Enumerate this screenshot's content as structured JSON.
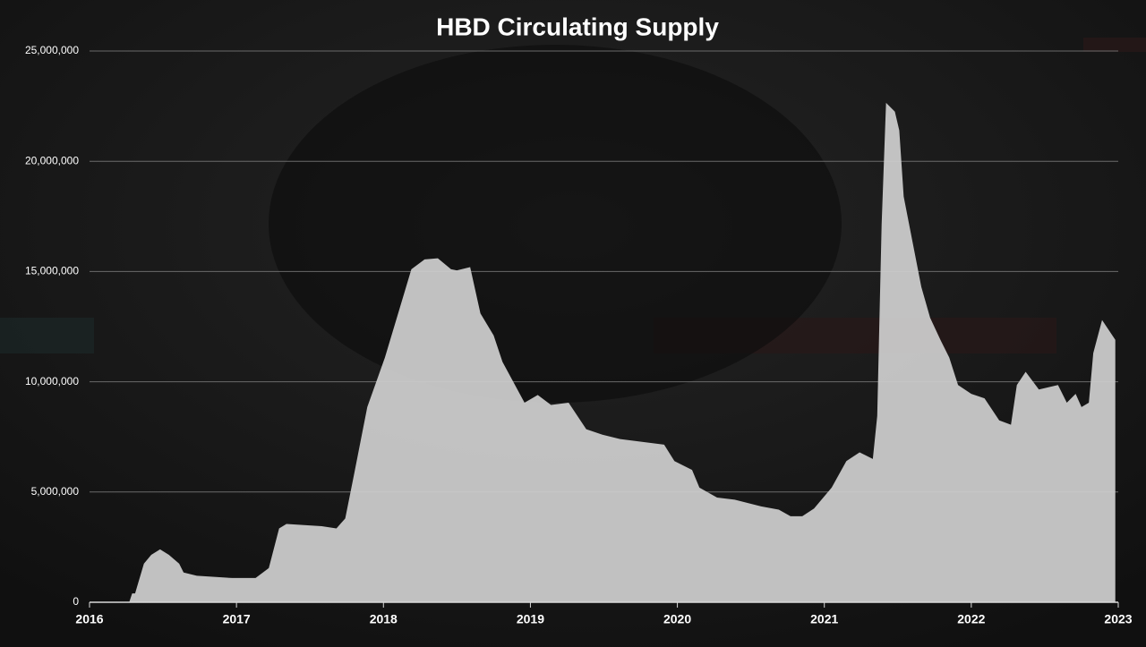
{
  "chart_data": {
    "type": "area",
    "title": "HBD Circulating Supply",
    "color": "#cfcfcf",
    "grid": true,
    "xlim": [
      2016,
      2023
    ],
    "xticks": [
      2016,
      2017,
      2018,
      2019,
      2020,
      2021,
      2022,
      2023
    ],
    "ylim": [
      0,
      25000000
    ],
    "yticks": [
      0,
      {
        "value": 5000000,
        "label": "5,000,000"
      },
      {
        "value": 10000000,
        "label": "10,000,000"
      },
      {
        "value": 15000000,
        "label": "15,000,000"
      },
      {
        "value": 20000000,
        "label": "20,000,000"
      },
      {
        "value": 25000000,
        "label": "25,000,000"
      }
    ],
    "x": [
      2016.0,
      2016.27,
      2016.29,
      2016.31,
      2016.37,
      2016.42,
      2016.48,
      2016.54,
      2016.61,
      2016.64,
      2016.73,
      2016.97,
      2017.13,
      2017.22,
      2017.29,
      2017.34,
      2017.58,
      2017.68,
      2017.74,
      2017.8,
      2017.89,
      2018.01,
      2018.1,
      2018.19,
      2018.28,
      2018.37,
      2018.46,
      2018.5,
      2018.59,
      2018.66,
      2018.75,
      2018.81,
      2018.96,
      2019.05,
      2019.14,
      2019.26,
      2019.38,
      2019.49,
      2019.61,
      2019.91,
      2019.98,
      2020.1,
      2020.15,
      2020.27,
      2020.39,
      2020.57,
      2020.69,
      2020.77,
      2020.85,
      2020.93,
      2021.05,
      2021.15,
      2021.24,
      2021.33,
      2021.36,
      2021.39,
      2021.42,
      2021.48,
      2021.51,
      2021.54,
      2021.6,
      2021.66,
      2021.72,
      2021.79,
      2021.85,
      2021.91,
      2022.0,
      2022.09,
      2022.19,
      2022.27,
      2022.31,
      2022.37,
      2022.46,
      2022.59,
      2022.65,
      2022.71,
      2022.75,
      2022.8,
      2022.83,
      2022.89,
      2022.98
    ],
    "values": [
      0,
      0,
      400000,
      400000,
      1750000,
      2150000,
      2400000,
      2150000,
      1750000,
      1350000,
      1200000,
      1100000,
      1100000,
      1550000,
      3350000,
      3550000,
      3450000,
      3350000,
      3800000,
      5800000,
      8850000,
      11100000,
      13100000,
      15100000,
      15550000,
      15600000,
      15100000,
      15050000,
      15200000,
      13100000,
      12100000,
      10900000,
      9050000,
      9400000,
      8950000,
      9050000,
      7850000,
      7600000,
      7400000,
      7150000,
      6400000,
      6000000,
      5200000,
      4750000,
      4650000,
      4350000,
      4200000,
      3900000,
      3900000,
      4250000,
      5200000,
      6400000,
      6800000,
      6500000,
      8450000,
      17150000,
      22650000,
      22250000,
      21400000,
      18400000,
      16350000,
      14300000,
      12900000,
      11900000,
      11100000,
      9850000,
      9450000,
      9250000,
      8250000,
      8050000,
      9850000,
      10450000,
      9650000,
      9850000,
      9050000,
      9450000,
      8850000,
      9050000,
      11300000,
      12800000,
      11900000
    ]
  }
}
